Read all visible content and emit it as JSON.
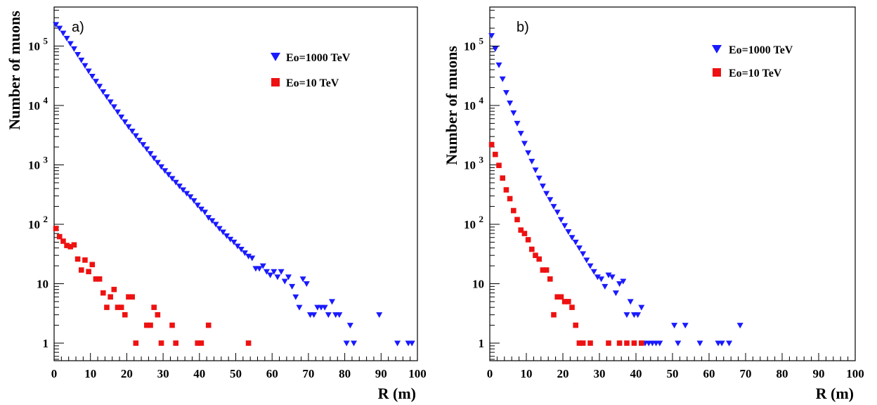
{
  "chart_data": [
    {
      "panel": "a)",
      "type": "scatter",
      "xlabel": "R (m)",
      "ylabel": "Number of muons",
      "xlim": [
        0,
        100
      ],
      "ylim": [
        0.5,
        300000
      ],
      "y_scale": "log",
      "x_ticks": [
        "0",
        "10",
        "20",
        "30",
        "40",
        "50",
        "60",
        "70",
        "80",
        "90",
        "100"
      ],
      "y_tick_labels": [
        {
          "value": 1,
          "base": "1",
          "exp": ""
        },
        {
          "value": 10,
          "base": "10",
          "exp": ""
        },
        {
          "value": 100,
          "base": "10",
          "exp": "2"
        },
        {
          "value": 1000,
          "base": "10",
          "exp": "3"
        },
        {
          "value": 10000,
          "base": "10",
          "exp": "4"
        },
        {
          "value": 100000,
          "base": "10",
          "exp": "5"
        }
      ],
      "legend_position": "top-right",
      "grid": false,
      "series": [
        {
          "name": "Eo=1000 TeV",
          "marker": "triangle-down",
          "color": "#1a1aff",
          "points": [
            [
              0.5,
              230000
            ],
            [
              1.5,
              200000
            ],
            [
              2.5,
              165000
            ],
            [
              3.5,
              135000
            ],
            [
              4.5,
              110000
            ],
            [
              5.5,
              90000
            ],
            [
              6.5,
              72000
            ],
            [
              7.5,
              58000
            ],
            [
              8.5,
              47000
            ],
            [
              9.5,
              38000
            ],
            [
              10.5,
              31000
            ],
            [
              11.5,
              25500
            ],
            [
              12.5,
              21000
            ],
            [
              13.5,
              17000
            ],
            [
              14.5,
              14000
            ],
            [
              15.5,
              11500
            ],
            [
              16.5,
              9500
            ],
            [
              17.5,
              7800
            ],
            [
              18.5,
              6400
            ],
            [
              19.5,
              5300
            ],
            [
              20.5,
              4400
            ],
            [
              21.5,
              3700
            ],
            [
              22.5,
              3100
            ],
            [
              23.5,
              2600
            ],
            [
              24.5,
              2200
            ],
            [
              25.5,
              1850
            ],
            [
              26.5,
              1550
            ],
            [
              27.5,
              1300
            ],
            [
              28.5,
              1100
            ],
            [
              29.5,
              930
            ],
            [
              30.5,
              800
            ],
            [
              31.5,
              690
            ],
            [
              32.5,
              590
            ],
            [
              33.5,
              510
            ],
            [
              34.5,
              440
            ],
            [
              35.5,
              380
            ],
            [
              36.5,
              330
            ],
            [
              37.5,
              290
            ],
            [
              38.5,
              250
            ],
            [
              39.5,
              210
            ],
            [
              40.5,
              180
            ],
            [
              41.5,
              160
            ],
            [
              42.5,
              130
            ],
            [
              43.5,
              115
            ],
            [
              44.5,
              100
            ],
            [
              45.5,
              85
            ],
            [
              46.5,
              74
            ],
            [
              47.5,
              64
            ],
            [
              48.5,
              56
            ],
            [
              49.5,
              50
            ],
            [
              50.5,
              43
            ],
            [
              51.5,
              38
            ],
            [
              52.5,
              33
            ],
            [
              53.5,
              29
            ],
            [
              54.5,
              27
            ],
            [
              55.5,
              18
            ],
            [
              56.5,
              18
            ],
            [
              57.5,
              20
            ],
            [
              58.5,
              16
            ],
            [
              59.5,
              14
            ],
            [
              60.5,
              16
            ],
            [
              61.5,
              13
            ],
            [
              62.5,
              16
            ],
            [
              63.5,
              11
            ],
            [
              64.5,
              13
            ],
            [
              65.5,
              9
            ],
            [
              66.5,
              6
            ],
            [
              67.5,
              4
            ],
            [
              68.5,
              12
            ],
            [
              69.5,
              10
            ],
            [
              70.5,
              3
            ],
            [
              71.5,
              3
            ],
            [
              72.5,
              4
            ],
            [
              73.5,
              4
            ],
            [
              74.5,
              4
            ],
            [
              75.5,
              3
            ],
            [
              76.5,
              5
            ],
            [
              77.5,
              3
            ],
            [
              78.5,
              3
            ],
            [
              80.5,
              1
            ],
            [
              81.5,
              2
            ],
            [
              82.5,
              1
            ],
            [
              89.5,
              3
            ],
            [
              94.5,
              1
            ],
            [
              97.5,
              1
            ],
            [
              98.5,
              1
            ]
          ]
        },
        {
          "name": "Eo=10 TeV",
          "marker": "square",
          "color": "#ee1111",
          "points": [
            [
              0.5,
              85
            ],
            [
              1.5,
              62
            ],
            [
              2.5,
              52
            ],
            [
              3.5,
              44
            ],
            [
              4.5,
              42
            ],
            [
              5.5,
              45
            ],
            [
              6.5,
              26
            ],
            [
              7.5,
              17
            ],
            [
              8.5,
              25
            ],
            [
              9.5,
              16
            ],
            [
              10.5,
              21
            ],
            [
              11.5,
              12
            ],
            [
              12.5,
              12
            ],
            [
              13.5,
              7
            ],
            [
              14.5,
              4
            ],
            [
              15.5,
              6
            ],
            [
              16.5,
              8
            ],
            [
              17.5,
              4
            ],
            [
              18.5,
              4
            ],
            [
              19.5,
              3
            ],
            [
              20.5,
              6
            ],
            [
              21.5,
              6
            ],
            [
              22.5,
              1
            ],
            [
              25.5,
              2
            ],
            [
              26.5,
              2
            ],
            [
              27.5,
              4
            ],
            [
              28.5,
              3
            ],
            [
              29.5,
              1
            ],
            [
              32.5,
              2
            ],
            [
              33.5,
              1
            ],
            [
              39.5,
              1
            ],
            [
              40.5,
              1
            ],
            [
              42.5,
              2
            ],
            [
              53.5,
              1
            ]
          ]
        }
      ]
    },
    {
      "panel": "b)",
      "type": "scatter",
      "xlabel": "R (m)",
      "ylabel": "Number of muons",
      "xlim": [
        0,
        100
      ],
      "ylim": [
        0.5,
        300000
      ],
      "y_scale": "log",
      "x_ticks": [
        "0",
        "10",
        "20",
        "30",
        "40",
        "50",
        "60",
        "70",
        "80",
        "90",
        "100"
      ],
      "y_tick_labels": [
        {
          "value": 1,
          "base": "1",
          "exp": ""
        },
        {
          "value": 10,
          "base": "10",
          "exp": ""
        },
        {
          "value": 100,
          "base": "10",
          "exp": "2"
        },
        {
          "value": 1000,
          "base": "10",
          "exp": "3"
        },
        {
          "value": 10000,
          "base": "10",
          "exp": "4"
        },
        {
          "value": 100000,
          "base": "10",
          "exp": "5"
        }
      ],
      "legend_position": "top-right",
      "grid": false,
      "series": [
        {
          "name": "Eo=1000 TeV",
          "marker": "triangle-down",
          "color": "#1a1aff",
          "points": [
            [
              0.5,
              150000
            ],
            [
              1.5,
              90000
            ],
            [
              2.5,
              48000
            ],
            [
              3.5,
              28000
            ],
            [
              4.5,
              16500
            ],
            [
              5.5,
              11000
            ],
            [
              6.5,
              7500
            ],
            [
              7.5,
              5000
            ],
            [
              8.5,
              3400
            ],
            [
              9.5,
              2300
            ],
            [
              10.5,
              1600
            ],
            [
              11.5,
              1150
            ],
            [
              12.5,
              820
            ],
            [
              13.5,
              600
            ],
            [
              14.5,
              440
            ],
            [
              15.5,
              330
            ],
            [
              16.5,
              260
            ],
            [
              17.5,
              200
            ],
            [
              18.5,
              160
            ],
            [
              19.5,
              120
            ],
            [
              20.5,
              95
            ],
            [
              21.5,
              75
            ],
            [
              22.5,
              60
            ],
            [
              23.5,
              50
            ],
            [
              24.5,
              40
            ],
            [
              25.5,
              32
            ],
            [
              26.5,
              25
            ],
            [
              27.5,
              20
            ],
            [
              28.5,
              16
            ],
            [
              29.5,
              13
            ],
            [
              30.5,
              12
            ],
            [
              31.5,
              9
            ],
            [
              32.5,
              14
            ],
            [
              33.5,
              13
            ],
            [
              34.5,
              7
            ],
            [
              35.5,
              10
            ],
            [
              36.5,
              11
            ],
            [
              37.5,
              3
            ],
            [
              38.5,
              5
            ],
            [
              39.5,
              3
            ],
            [
              40.5,
              3
            ],
            [
              41.5,
              4
            ],
            [
              42.5,
              1
            ],
            [
              43.5,
              1
            ],
            [
              44.5,
              1
            ],
            [
              45.5,
              1
            ],
            [
              46.5,
              1
            ],
            [
              50.5,
              2
            ],
            [
              51.5,
              1
            ],
            [
              53.5,
              2
            ],
            [
              57.5,
              1
            ],
            [
              62.5,
              1
            ],
            [
              63.5,
              1
            ],
            [
              65.5,
              1
            ],
            [
              68.5,
              2
            ]
          ]
        },
        {
          "name": "Eo=10 TeV",
          "marker": "square",
          "color": "#ee1111",
          "points": [
            [
              0.5,
              2200
            ],
            [
              1.5,
              1500
            ],
            [
              2.5,
              980
            ],
            [
              3.5,
              600
            ],
            [
              4.5,
              380
            ],
            [
              5.5,
              270
            ],
            [
              6.5,
              170
            ],
            [
              7.5,
              120
            ],
            [
              8.5,
              80
            ],
            [
              9.5,
              70
            ],
            [
              10.5,
              55
            ],
            [
              11.5,
              38
            ],
            [
              12.5,
              30
            ],
            [
              13.5,
              26
            ],
            [
              14.5,
              17
            ],
            [
              15.5,
              17
            ],
            [
              16.5,
              12
            ],
            [
              17.5,
              3
            ],
            [
              18.5,
              6
            ],
            [
              19.5,
              6
            ],
            [
              20.5,
              5
            ],
            [
              21.5,
              5
            ],
            [
              22.5,
              4
            ],
            [
              23.5,
              2
            ],
            [
              24.5,
              1
            ],
            [
              25.5,
              1
            ],
            [
              27.5,
              1
            ],
            [
              32.5,
              1
            ],
            [
              35.5,
              1
            ],
            [
              37.5,
              1
            ],
            [
              39.5,
              1
            ],
            [
              41.5,
              1
            ]
          ]
        }
      ]
    }
  ]
}
